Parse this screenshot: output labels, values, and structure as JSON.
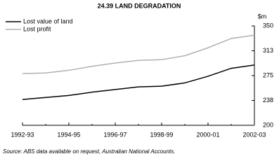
{
  "chart_data": {
    "type": "line",
    "title": "24.39   LAND DEGRADATION",
    "y_label": "$m",
    "categories": [
      "1992-93",
      null,
      "1994-95",
      null,
      "1996-97",
      null,
      "1998-99",
      null,
      "2000-01",
      null,
      "2002-03"
    ],
    "series": [
      {
        "name": "Lost value of land",
        "color": "#000000",
        "values": [
          239,
          242,
          245,
          250,
          254,
          258,
          259,
          264,
          274,
          286,
          291
        ]
      },
      {
        "name": "Lost profit",
        "color": "#b0b0b0",
        "values": [
          278,
          279,
          283,
          289,
          294,
          298,
          299,
          305,
          317,
          331,
          336
        ]
      }
    ],
    "ylim": [
      200,
      350
    ],
    "yticks": [
      200,
      {
        "value": 237.5,
        "label": "238"
      },
      275,
      {
        "value": 312.5,
        "label": "313"
      },
      350
    ],
    "note": "Source: ABS data available on request, Australian National Accounts."
  }
}
